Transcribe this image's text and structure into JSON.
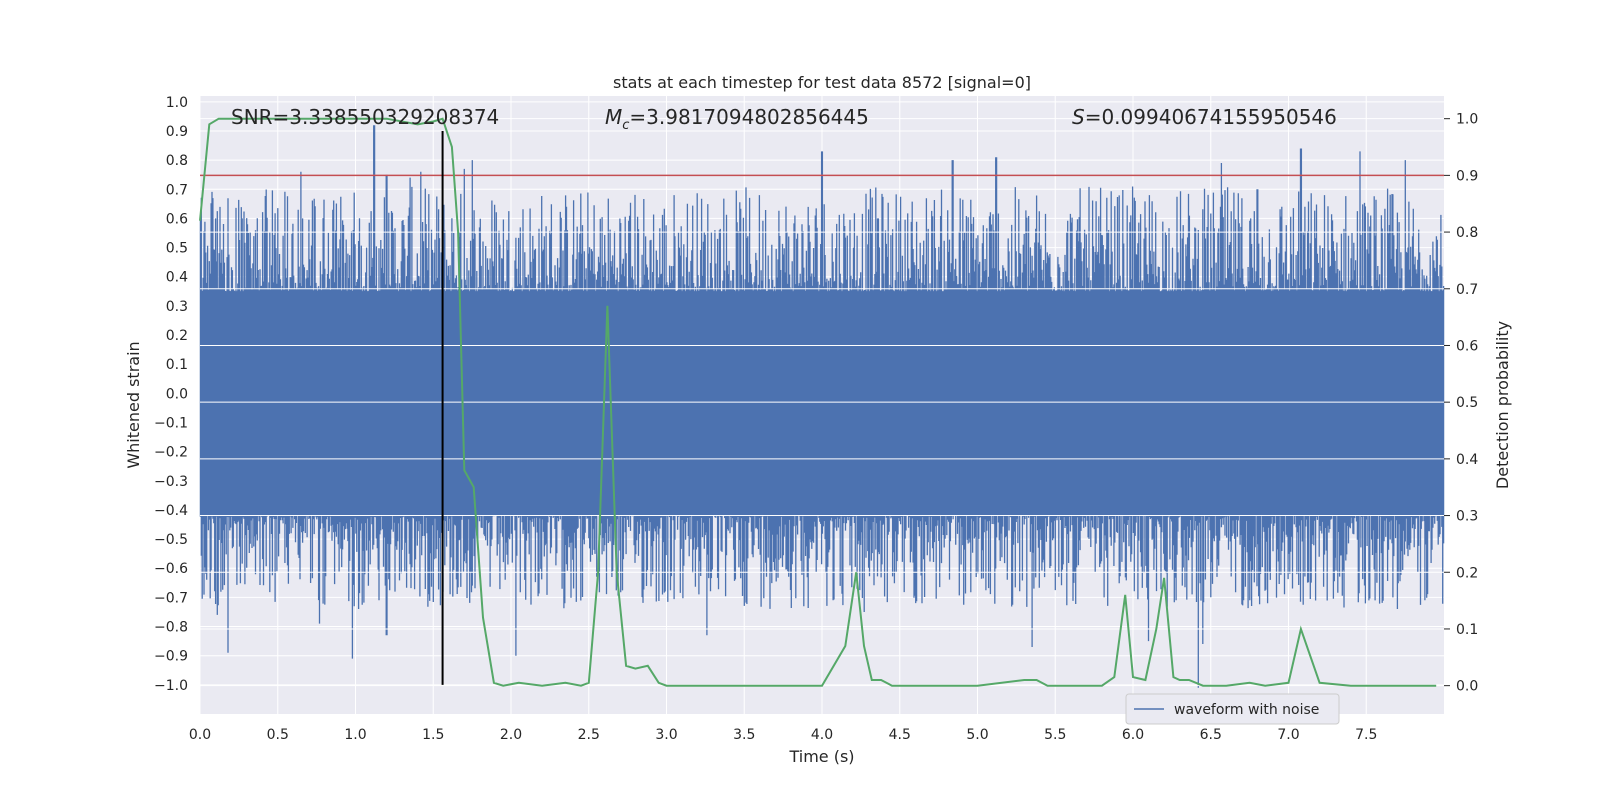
{
  "chart_data": {
    "type": "line",
    "title": "stats at each timestep for test data 8572 [signal=0]",
    "xlabel": "Time (s)",
    "ylabel_left": "Whitened strain",
    "ylabel_right": "Detection probability",
    "xlim": [
      0.0,
      8.0
    ],
    "ylim_left": [
      -1.1,
      1.02
    ],
    "ylim_right": [
      -0.05,
      1.04
    ],
    "x_ticks": [
      "0.0",
      "0.5",
      "1.0",
      "1.5",
      "2.0",
      "2.5",
      "3.0",
      "3.5",
      "4.0",
      "4.5",
      "5.0",
      "5.5",
      "6.0",
      "6.5",
      "7.0",
      "7.5"
    ],
    "y_left_ticks": [
      "1.0",
      "0.9",
      "0.8",
      "0.7",
      "0.6",
      "0.5",
      "0.4",
      "0.3",
      "0.2",
      "0.1",
      "0.0",
      "−0.1",
      "−0.2",
      "−0.3",
      "−0.4",
      "−0.5",
      "−0.6",
      "−0.7",
      "−0.8",
      "−0.9",
      "−1.0"
    ],
    "y_right_ticks": [
      "1.0",
      "0.9",
      "0.8",
      "0.7",
      "0.6",
      "0.5",
      "0.4",
      "0.3",
      "0.2",
      "0.1",
      "0.0"
    ],
    "grid": true,
    "legend_position": "lower-right",
    "annotations": {
      "snr": "SNR=3.338550329208374",
      "mc_symbol": "M",
      "mc_sub": "c",
      "mc_value": "=3.9817094802856445",
      "s_symbol": "S",
      "s_value": "=0.09940674155950546"
    },
    "threshold": {
      "detection_probability": 0.9,
      "color": "#c44e52"
    },
    "marker": {
      "time": 1.56,
      "color": "#000000"
    },
    "series": [
      {
        "name": "waveform with noise",
        "axis": "left",
        "color": "#4c72b0",
        "kind": "noise",
        "band_top": 0.35,
        "band_bottom": -0.42,
        "peaks": [
          {
            "t": 0.1,
            "v": 0.6
          },
          {
            "t": 0.27,
            "v": 0.6
          },
          {
            "t": 0.65,
            "v": 0.76
          },
          {
            "t": 1.12,
            "v": 0.92
          },
          {
            "t": 1.2,
            "v": 0.75
          },
          {
            "t": 1.35,
            "v": 0.74
          },
          {
            "t": 1.42,
            "v": 0.76
          },
          {
            "t": 1.7,
            "v": 0.77
          },
          {
            "t": 1.75,
            "v": 0.8
          },
          {
            "t": 3.05,
            "v": 0.68
          },
          {
            "t": 4.0,
            "v": 0.83
          },
          {
            "t": 4.36,
            "v": 0.6
          },
          {
            "t": 4.84,
            "v": 0.8
          },
          {
            "t": 5.12,
            "v": 0.81
          },
          {
            "t": 6.57,
            "v": 0.79
          },
          {
            "t": 6.8,
            "v": 0.7
          },
          {
            "t": 7.08,
            "v": 0.84
          },
          {
            "t": 7.46,
            "v": 0.83
          },
          {
            "t": 7.75,
            "v": 0.8
          }
        ],
        "troughs": [
          {
            "t": 0.11,
            "v": -0.76
          },
          {
            "t": 0.18,
            "v": -0.89
          },
          {
            "t": 0.77,
            "v": -0.79
          },
          {
            "t": 0.98,
            "v": -0.91
          },
          {
            "t": 1.2,
            "v": -0.83
          },
          {
            "t": 2.03,
            "v": -0.9
          },
          {
            "t": 3.26,
            "v": -0.83
          },
          {
            "t": 4.27,
            "v": -0.75
          },
          {
            "t": 5.35,
            "v": -0.87
          },
          {
            "t": 6.1,
            "v": -0.85
          },
          {
            "t": 6.42,
            "v": -1.01
          },
          {
            "t": 6.45,
            "v": -0.86
          },
          {
            "t": 7.67,
            "v": -0.7
          }
        ]
      },
      {
        "name": "detection probability",
        "axis": "right",
        "color": "#55a868",
        "x": [
          0.0,
          0.06,
          0.12,
          0.3,
          0.6,
          0.9,
          1.2,
          1.4,
          1.5,
          1.56,
          1.62,
          1.66,
          1.7,
          1.76,
          1.82,
          1.89,
          1.95,
          2.05,
          2.2,
          2.35,
          2.45,
          2.5,
          2.56,
          2.62,
          2.68,
          2.74,
          2.8,
          2.88,
          2.95,
          3.0,
          3.2,
          3.5,
          3.7,
          4.0,
          4.15,
          4.22,
          4.27,
          4.32,
          4.38,
          4.45,
          4.55,
          4.7,
          5.0,
          5.3,
          5.38,
          5.45,
          5.6,
          5.8,
          5.88,
          5.95,
          6.0,
          6.08,
          6.15,
          6.2,
          6.26,
          6.3,
          6.36,
          6.45,
          6.6,
          6.75,
          6.85,
          7.0,
          7.08,
          7.2,
          7.4,
          7.6,
          7.8,
          7.95
        ],
        "y": [
          0.82,
          0.99,
          1.0,
          1.0,
          1.0,
          1.0,
          1.0,
          0.99,
          0.995,
          1.0,
          0.95,
          0.8,
          0.38,
          0.35,
          0.12,
          0.005,
          0.0,
          0.005,
          0.0,
          0.005,
          0.0,
          0.005,
          0.2,
          0.67,
          0.2,
          0.035,
          0.03,
          0.035,
          0.005,
          0.0,
          0.0,
          0.0,
          0.0,
          0.0,
          0.07,
          0.2,
          0.07,
          0.01,
          0.01,
          0.0,
          0.0,
          0.0,
          0.0,
          0.01,
          0.01,
          0.0,
          0.0,
          0.0,
          0.015,
          0.16,
          0.015,
          0.01,
          0.1,
          0.19,
          0.015,
          0.01,
          0.01,
          0.0,
          0.0,
          0.005,
          0.0,
          0.005,
          0.1,
          0.005,
          0.0,
          0.0,
          0.0,
          0.0
        ]
      }
    ]
  }
}
